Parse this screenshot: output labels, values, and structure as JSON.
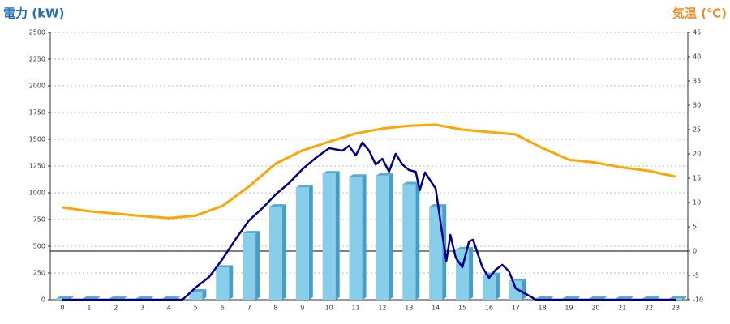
{
  "chart_data": {
    "type": "bar",
    "y_label": "電力 (kW)",
    "y2_label": "気温 (℃)",
    "categories": [
      0,
      1,
      2,
      3,
      4,
      5,
      6,
      7,
      8,
      9,
      10,
      11,
      12,
      13,
      14,
      15,
      16,
      17,
      18,
      19,
      20,
      21,
      22,
      23
    ],
    "ylim": [
      0,
      2500
    ],
    "yticks": [
      0,
      250,
      500,
      750,
      1000,
      1250,
      1500,
      1750,
      2000,
      2250,
      2500
    ],
    "y2lim": [
      -10,
      45
    ],
    "y2ticks": [
      -10,
      -5,
      0,
      5,
      10,
      15,
      20,
      25,
      30,
      35,
      40,
      45
    ],
    "grid": true,
    "series": [
      {
        "type": "bar",
        "color": "#87ceeb",
        "values": [
          10,
          10,
          10,
          10,
          10,
          76,
          300,
          620,
          870,
          1050,
          1180,
          1150,
          1160,
          1080,
          870,
          470,
          230,
          175,
          10,
          10,
          10,
          10,
          10,
          10
        ]
      },
      {
        "type": "line",
        "color": "#00008b",
        "x": [
          0,
          1,
          2,
          3,
          4,
          4.5,
          5,
          5.5,
          6,
          6.5,
          7,
          7.5,
          8,
          8.5,
          9,
          9.5,
          10,
          10.5,
          10.75,
          11,
          11.25,
          11.5,
          11.75,
          12,
          12.25,
          12.5,
          12.75,
          13,
          13.25,
          13.4,
          13.6,
          14,
          14.25,
          14.4,
          14.55,
          14.75,
          15,
          15.25,
          15.4,
          15.75,
          16,
          16.25,
          16.5,
          16.75,
          17,
          17.5,
          17.75,
          18,
          19,
          20,
          21,
          22,
          23
        ],
        "values": [
          0,
          0,
          0,
          0,
          0,
          0,
          114,
          212,
          379,
          568,
          742,
          856,
          985,
          1091,
          1220,
          1326,
          1417,
          1394,
          1439,
          1349,
          1470,
          1394,
          1265,
          1318,
          1197,
          1364,
          1265,
          1212,
          1197,
          1023,
          1190,
          1038,
          606,
          364,
          606,
          394,
          303,
          545,
          561,
          303,
          205,
          280,
          326,
          265,
          106,
          38,
          0,
          0,
          0,
          0,
          0,
          0,
          0
        ]
      },
      {
        "type": "line",
        "axis": "y2",
        "color": "#ffa500",
        "values": [
          9,
          8.2,
          7.7,
          7.2,
          6.8,
          7.3,
          9.3,
          13.3,
          18,
          20.7,
          22.5,
          24.2,
          25.2,
          25.8,
          26,
          25,
          24.5,
          24,
          21.2,
          18.8,
          18.2,
          17.2,
          16.5,
          15.3
        ]
      }
    ]
  }
}
